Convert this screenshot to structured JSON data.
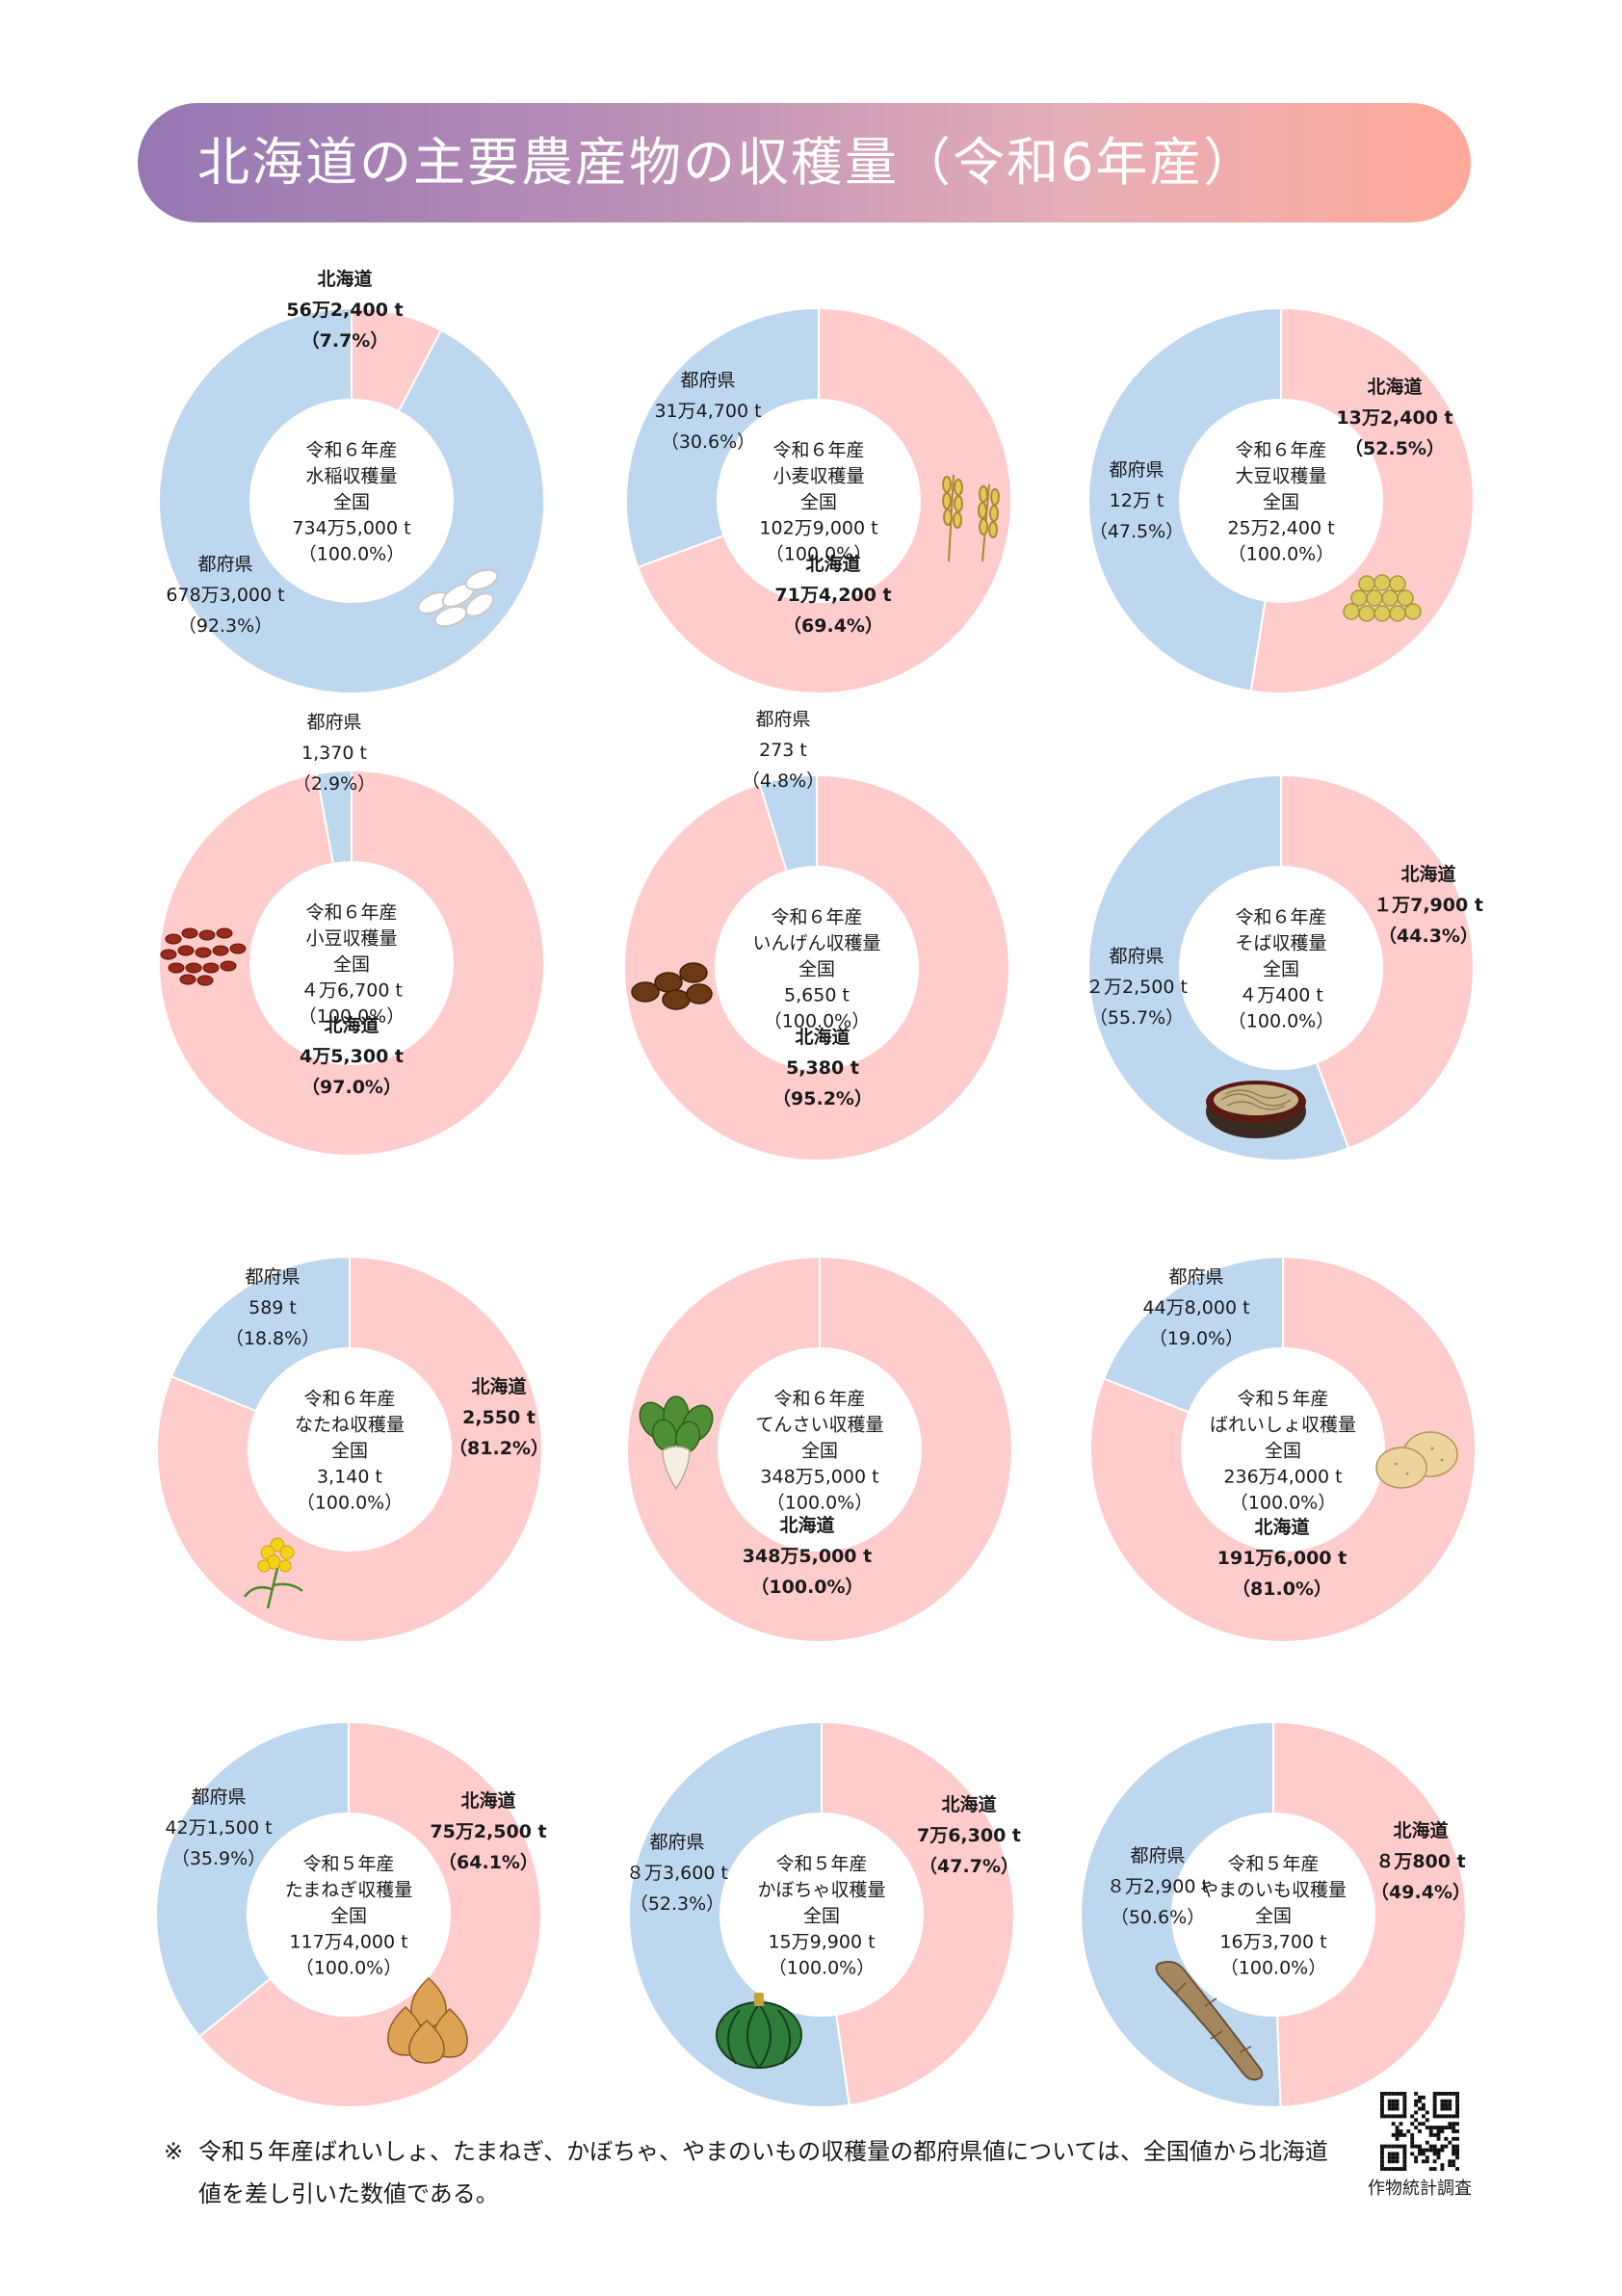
{
  "title": "北海道の主要農産物の収穫量（令和6年産）",
  "colors": {
    "hokkaido": "#ffcccc",
    "prefectures": "#bdd7ee"
  },
  "chart_data": [
    {
      "type": "pie",
      "crop": "水稲",
      "title": "水稲収穫量",
      "year_label": "令和６年産",
      "national_label": "全国",
      "total_label": "734万5,000 t",
      "total_share_label": "（100.0%）",
      "slices": [
        {
          "name": "北海道",
          "value": 7.7,
          "amount_label": "56万2,400 t",
          "share_label": "（7.7%）"
        },
        {
          "name": "都府県",
          "value": 92.3,
          "amount_label": "678万3,000 t",
          "share_label": "（92.3%）"
        }
      ]
    },
    {
      "type": "pie",
      "crop": "小麦",
      "title": "小麦収穫量",
      "year_label": "令和６年産",
      "national_label": "全国",
      "total_label": "102万9,000 t",
      "total_share_label": "（100.0%）",
      "slices": [
        {
          "name": "北海道",
          "value": 69.4,
          "amount_label": "71万4,200 t",
          "share_label": "（69.4%）"
        },
        {
          "name": "都府県",
          "value": 30.6,
          "amount_label": "31万4,700 t",
          "share_label": "（30.6%）"
        }
      ]
    },
    {
      "type": "pie",
      "crop": "大豆",
      "title": "大豆収穫量",
      "year_label": "令和６年産",
      "national_label": "全国",
      "total_label": "25万2,400 t",
      "total_share_label": "（100.0%）",
      "slices": [
        {
          "name": "北海道",
          "value": 52.5,
          "amount_label": "13万2,400 t",
          "share_label": "（52.5%）"
        },
        {
          "name": "都府県",
          "value": 47.5,
          "amount_label": "12万 t",
          "share_label": "（47.5%）"
        }
      ]
    },
    {
      "type": "pie",
      "crop": "小豆",
      "title": "小豆収穫量",
      "year_label": "令和６年産",
      "national_label": "全国",
      "total_label": "４万6,700 t",
      "total_share_label": "（100.0%）",
      "slices": [
        {
          "name": "北海道",
          "value": 97.0,
          "amount_label": "4万5,300 t",
          "share_label": "（97.0%）"
        },
        {
          "name": "都府県",
          "value": 2.9,
          "amount_label": "1,370 t",
          "share_label": "（2.9%）"
        }
      ]
    },
    {
      "type": "pie",
      "crop": "いんげん",
      "title": "いんげん収穫量",
      "year_label": "令和６年産",
      "national_label": "全国",
      "total_label": "5,650 t",
      "total_share_label": "（100.0%）",
      "slices": [
        {
          "name": "北海道",
          "value": 95.2,
          "amount_label": "5,380 t",
          "share_label": "（95.2%）"
        },
        {
          "name": "都府県",
          "value": 4.8,
          "amount_label": "273 t",
          "share_label": "（4.8%）"
        }
      ]
    },
    {
      "type": "pie",
      "crop": "そば",
      "title": "そば収穫量",
      "year_label": "令和６年産",
      "national_label": "全国",
      "total_label": "４万400 t",
      "total_share_label": "（100.0%）",
      "slices": [
        {
          "name": "北海道",
          "value": 44.3,
          "amount_label": "１万7,900 t",
          "share_label": "（44.3%）"
        },
        {
          "name": "都府県",
          "value": 55.7,
          "amount_label": "２万2,500 t",
          "share_label": "（55.7%）"
        }
      ]
    },
    {
      "type": "pie",
      "crop": "なたね",
      "title": "なたね収穫量",
      "year_label": "令和６年産",
      "national_label": "全国",
      "total_label": "3,140 t",
      "total_share_label": "（100.0%）",
      "slices": [
        {
          "name": "北海道",
          "value": 81.2,
          "amount_label": "2,550 t",
          "share_label": "（81.2%）"
        },
        {
          "name": "都府県",
          "value": 18.8,
          "amount_label": "589 t",
          "share_label": "（18.8%）"
        }
      ]
    },
    {
      "type": "pie",
      "crop": "てんさい",
      "title": "てんさい収穫量",
      "year_label": "令和６年産",
      "national_label": "全国",
      "total_label": "348万5,000 t",
      "total_share_label": "（100.0%）",
      "slices": [
        {
          "name": "北海道",
          "value": 100.0,
          "amount_label": "348万5,000 t",
          "share_label": "（100.0%）"
        }
      ]
    },
    {
      "type": "pie",
      "crop": "ばれいしょ",
      "title": "ばれいしょ収穫量",
      "year_label": "令和５年産",
      "national_label": "全国",
      "total_label": "236万4,000 t",
      "total_share_label": "（100.0%）",
      "slices": [
        {
          "name": "北海道",
          "value": 81.0,
          "amount_label": "191万6,000 t",
          "share_label": "（81.0%）"
        },
        {
          "name": "都府県",
          "value": 19.0,
          "amount_label": "44万8,000 t",
          "share_label": "（19.0%）"
        }
      ]
    },
    {
      "type": "pie",
      "crop": "たまねぎ",
      "title": "たまねぎ収穫量",
      "year_label": "令和５年産",
      "national_label": "全国",
      "total_label": "117万4,000 t",
      "total_share_label": "（100.0%）",
      "slices": [
        {
          "name": "北海道",
          "value": 64.1,
          "amount_label": "75万2,500 t",
          "share_label": "（64.1%）"
        },
        {
          "name": "都府県",
          "value": 35.9,
          "amount_label": "42万1,500 t",
          "share_label": "（35.9%）"
        }
      ]
    },
    {
      "type": "pie",
      "crop": "かぼちゃ",
      "title": "かぼちゃ収穫量",
      "year_label": "令和５年産",
      "national_label": "全国",
      "total_label": "15万9,900 t",
      "total_share_label": "（100.0%）",
      "slices": [
        {
          "name": "北海道",
          "value": 47.7,
          "amount_label": "7万6,300 t",
          "share_label": "（47.7%）"
        },
        {
          "name": "都府県",
          "value": 52.3,
          "amount_label": "８万3,600 t",
          "share_label": "（52.3%）"
        }
      ]
    },
    {
      "type": "pie",
      "crop": "やまのいも",
      "title": "やまのいも収穫量",
      "year_label": "令和５年産",
      "national_label": "全国",
      "total_label": "16万3,700 t",
      "total_share_label": "（100.0%）",
      "slices": [
        {
          "name": "北海道",
          "value": 49.4,
          "amount_label": "８万800 t",
          "share_label": "（49.4%）"
        },
        {
          "name": "都府県",
          "value": 50.6,
          "amount_label": "８万2,900 t",
          "share_label": "（50.6%）"
        }
      ]
    }
  ],
  "footnote": {
    "mark": "※",
    "text": "令和５年産ばれいしょ、たまねぎ、かぼちゃ、やまのいもの収穫量の都府県値については、全国値から北海道値を差し引いた数値である。"
  },
  "qr_caption": "作物統計調査"
}
